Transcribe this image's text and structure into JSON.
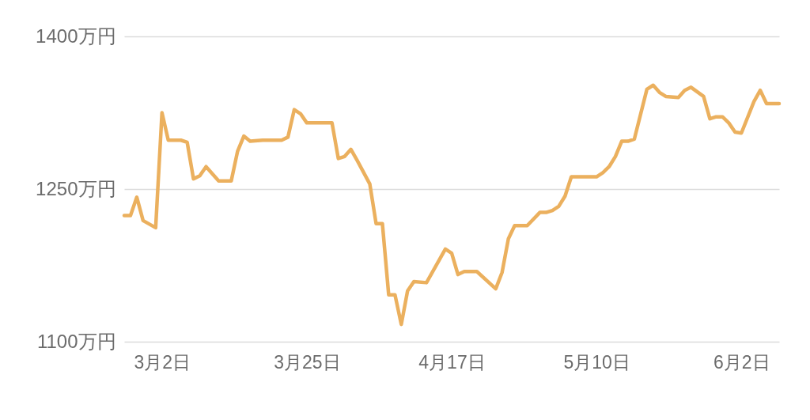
{
  "chart_data": {
    "type": "line",
    "x": [
      "--02-24",
      "--02-25",
      "--02-26",
      "--02-27",
      "--03-01",
      "--03-02",
      "--03-03",
      "--03-05",
      "--03-06",
      "--03-07",
      "--03-08",
      "--03-09",
      "--03-11",
      "--03-13",
      "--03-14",
      "--03-15",
      "--03-16",
      "--03-18",
      "--03-21",
      "--03-22",
      "--03-23",
      "--03-24",
      "--03-25",
      "--03-29",
      "--03-30",
      "--03-31",
      "--04-01",
      "--04-02",
      "--04-04",
      "--04-05",
      "--04-06",
      "--04-07",
      "--04-08",
      "--04-09",
      "--04-10",
      "--04-11",
      "--04-13",
      "--04-16",
      "--04-17",
      "--04-18",
      "--04-19",
      "--04-21",
      "--04-24",
      "--04-25",
      "--04-26",
      "--04-27",
      "--04-29",
      "--05-01",
      "--05-02",
      "--05-03",
      "--05-04",
      "--05-05",
      "--05-06",
      "--05-10",
      "--05-11",
      "--05-12",
      "--05-13",
      "--05-14",
      "--05-15",
      "--05-16",
      "--05-18",
      "--05-19",
      "--05-20",
      "--05-21",
      "--05-23",
      "--05-24",
      "--05-25",
      "--05-27",
      "--05-28",
      "--05-29",
      "--05-30",
      "--05-31",
      "--06-01",
      "--06-02",
      "--06-04",
      "--06-05",
      "--06-06",
      "--06-08"
    ],
    "series": [
      {
        "color": "#ebb05e",
        "values": [
          1224,
          1224,
          1242,
          1219,
          1212,
          1325,
          1298,
          1298,
          1296,
          1260,
          1263,
          1272,
          1258,
          1258,
          1287,
          1302,
          1297,
          1298,
          1298,
          1301,
          1328,
          1324,
          1315,
          1315,
          1280,
          1282,
          1289,
          1278,
          1255,
          1216,
          1216,
          1146,
          1146,
          1117,
          1150,
          1159,
          1158,
          1191,
          1187,
          1166,
          1169,
          1169,
          1152,
          1168,
          1201,
          1214,
          1214,
          1227,
          1227,
          1229,
          1233,
          1243,
          1262,
          1262,
          1266,
          1272,
          1282,
          1297,
          1297,
          1299,
          1348,
          1352,
          1345,
          1341,
          1340,
          1347,
          1350,
          1341,
          1319,
          1321,
          1321,
          1315,
          1306,
          1305,
          1336,
          1347,
          1334,
          1334
        ]
      }
    ],
    "xlim": [
      "--02-24",
      "--06-08"
    ],
    "xticks": [
      {
        "value": "--03-02",
        "label": "3月2日"
      },
      {
        "value": "--03-25",
        "label": "3月25日"
      },
      {
        "value": "--04-17",
        "label": "4月17日"
      },
      {
        "value": "--05-10",
        "label": "5月10日"
      },
      {
        "value": "--06-02",
        "label": "6月2日"
      }
    ],
    "ylim": [
      1100,
      1400
    ],
    "yticks": [
      {
        "value": 1100,
        "label": "1100万円"
      },
      {
        "value": 1250,
        "label": "1250万円"
      },
      {
        "value": 1400,
        "label": "1400万円"
      }
    ],
    "grid": "y",
    "marker": "none",
    "line_style": "solid"
  }
}
